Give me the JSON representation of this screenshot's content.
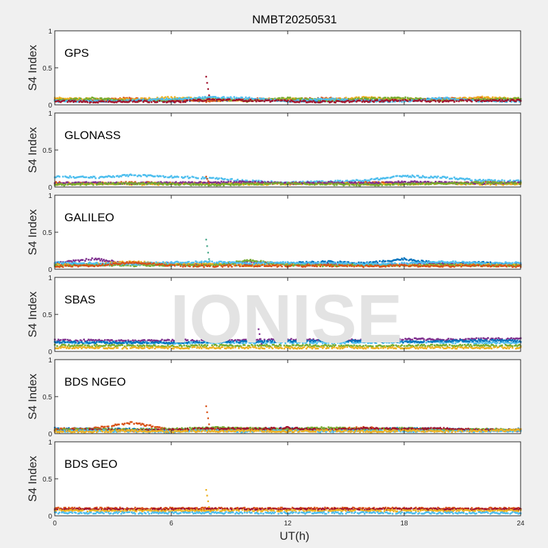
{
  "chart_data": {
    "type": "scatter",
    "title": "NMBT20250531",
    "xlabel": "UT(h)",
    "ylabel": "S4 Index",
    "xlim": [
      0,
      24
    ],
    "ylim": [
      0,
      1
    ],
    "xticks": [
      "0",
      "6",
      "12",
      "18",
      "24"
    ],
    "yticks": [
      "0",
      "0.5",
      "1"
    ],
    "watermark": "IONISE",
    "colors": [
      "#0072BD",
      "#D95319",
      "#EDB120",
      "#7E2F8E",
      "#77AC30",
      "#4DBEEE",
      "#A2142F"
    ],
    "x_knots": [
      0,
      2,
      4,
      6,
      8,
      10,
      12,
      14,
      16,
      18,
      20,
      22,
      24
    ],
    "panels": [
      {
        "label": "GPS",
        "series": [
          {
            "color": "#0072BD",
            "y": [
              0.07,
              0.06,
              0.07,
              0.05,
              0.06,
              0.07,
              0.06,
              0.05,
              0.07,
              0.06,
              0.08,
              0.06,
              0.07
            ]
          },
          {
            "color": "#D95319",
            "y": [
              0.08,
              0.07,
              0.09,
              0.06,
              0.05,
              0.08,
              0.07,
              0.09,
              0.06,
              0.07,
              0.08,
              0.09,
              0.06
            ]
          },
          {
            "color": "#EDB120",
            "y": [
              0.09,
              0.08,
              0.07,
              0.1,
              0.07,
              0.06,
              0.08,
              0.07,
              0.1,
              0.08,
              0.07,
              0.1,
              0.08
            ]
          },
          {
            "color": "#77AC30",
            "y": [
              0.06,
              0.09,
              0.05,
              0.07,
              0.09,
              0.05,
              0.09,
              0.06,
              0.08,
              0.09,
              0.06,
              0.07,
              0.09
            ]
          },
          {
            "color": "#4DBEEE",
            "y": [
              0.05,
              0.05,
              0.06,
              0.08,
              0.1,
              0.09,
              0.05,
              0.08,
              0.05,
              0.05,
              0.09,
              0.05,
              0.05
            ]
          },
          {
            "color": "#A2142F",
            "y": [
              0.05,
              0.04,
              0.05,
              0.04,
              0.07,
              0.06,
              0.05,
              0.04,
              0.05,
              0.06,
              0.05,
              0.06,
              0.06
            ]
          }
        ],
        "spikes": [
          {
            "x": 7.8,
            "y": 0.38,
            "color": "#A2142F"
          }
        ]
      },
      {
        "label": "GLONASS",
        "series": [
          {
            "color": "#4DBEEE",
            "y": [
              0.14,
              0.13,
              0.16,
              0.14,
              0.12,
              0.08,
              0.06,
              0.07,
              0.09,
              0.15,
              0.13,
              0.09,
              0.08
            ]
          },
          {
            "color": "#D95319",
            "y": [
              0.06,
              0.05,
              0.06,
              0.05,
              0.05,
              0.06,
              0.05,
              0.05,
              0.06,
              0.05,
              0.05,
              0.06,
              0.05
            ]
          },
          {
            "color": "#EDB120",
            "y": [
              0.04,
              0.05,
              0.04,
              0.04,
              0.05,
              0.04,
              0.04,
              0.05,
              0.04,
              0.04,
              0.05,
              0.04,
              0.04
            ]
          },
          {
            "color": "#7E2F8E",
            "y": [
              0.05,
              0.06,
              0.05,
              0.06,
              0.06,
              0.07,
              0.05,
              0.06,
              0.05,
              0.07,
              0.06,
              0.05,
              0.06
            ]
          },
          {
            "color": "#77AC30",
            "y": [
              0.03,
              0.04,
              0.05,
              0.04,
              0.03,
              0.04,
              0.05,
              0.04,
              0.03,
              0.04,
              0.05,
              0.06,
              0.05
            ]
          }
        ],
        "spikes": [
          {
            "x": 7.8,
            "y": 0.14,
            "color": "#D95319"
          }
        ]
      },
      {
        "label": "GALILEO",
        "series": [
          {
            "color": "#0072BD",
            "y": [
              0.07,
              0.06,
              0.08,
              0.06,
              0.07,
              0.06,
              0.08,
              0.1,
              0.08,
              0.14,
              0.07,
              0.09,
              0.06
            ]
          },
          {
            "color": "#7E2F8E",
            "y": [
              0.08,
              0.14,
              0.07,
              0.08,
              0.06,
              0.1,
              0.06,
              0.07,
              0.06,
              0.07,
              0.08,
              0.06,
              0.07
            ]
          },
          {
            "color": "#EDB120",
            "y": [
              0.06,
              0.07,
              0.1,
              0.07,
              0.08,
              0.05,
              0.07,
              0.06,
              0.05,
              0.06,
              0.05,
              0.07,
              0.06
            ]
          },
          {
            "color": "#77AC30",
            "y": [
              0.05,
              0.06,
              0.05,
              0.06,
              0.05,
              0.12,
              0.06,
              0.05,
              0.06,
              0.05,
              0.06,
              0.05,
              0.05
            ]
          },
          {
            "color": "#4DBEEE",
            "y": [
              0.09,
              0.08,
              0.07,
              0.09,
              0.1,
              0.08,
              0.09,
              0.08,
              0.07,
              0.08,
              0.1,
              0.08,
              0.09
            ]
          },
          {
            "color": "#D95319",
            "y": [
              0.04,
              0.05,
              0.09,
              0.05,
              0.04,
              0.05,
              0.04,
              0.05,
              0.04,
              0.05,
              0.04,
              0.05,
              0.04
            ]
          }
        ],
        "spikes": [
          {
            "x": 7.8,
            "y": 0.4,
            "color": "#4DAA8E"
          }
        ]
      },
      {
        "label": "SBAS",
        "series": [
          {
            "color": "#7E2F8E",
            "y": [
              0.15,
              0.15,
              0.14,
              0.15,
              0.15,
              0.15,
              0.16,
              0.15,
              0.16,
              0.17,
              0.16,
              0.17,
              0.17
            ]
          },
          {
            "color": "#4DBEEE",
            "y": [
              0.12,
              0.12,
              0.12,
              0.11,
              0.12,
              0.12,
              0.12,
              0.12,
              0.12,
              0.13,
              0.12,
              0.12,
              0.12
            ]
          },
          {
            "color": "#0072BD",
            "y": [
              0.13,
              0.12,
              0.12,
              0.12,
              0.13,
              0.13,
              0.14,
              0.15,
              0.14,
              0.13,
              0.14,
              0.15,
              0.14
            ]
          },
          {
            "color": "#77AC30",
            "y": [
              0.08,
              0.08,
              0.08,
              0.07,
              0.08,
              0.08,
              0.08,
              0.08,
              0.07,
              0.08,
              0.08,
              0.08,
              0.08
            ]
          },
          {
            "color": "#EDB120",
            "y": [
              0.05,
              0.05,
              0.05,
              0.05,
              0.05,
              0.05,
              0.05,
              0.05,
              0.05,
              0.05,
              0.05,
              0.05,
              0.05
            ]
          }
        ],
        "spikes": [
          {
            "x": 10.5,
            "y": 0.3,
            "color": "#7E2F8E"
          }
        ]
      },
      {
        "label": "BDS NGEO",
        "series": [
          {
            "color": "#0072BD",
            "y": [
              0.07,
              0.06,
              0.06,
              0.05,
              0.06,
              0.06,
              0.07,
              0.06,
              0.06,
              0.07,
              0.06,
              0.05,
              0.06
            ]
          },
          {
            "color": "#D95319",
            "y": [
              0.06,
              0.07,
              0.15,
              0.05,
              0.06,
              0.07,
              0.05,
              0.06,
              0.08,
              0.05,
              0.06,
              0.04,
              0.05
            ]
          },
          {
            "color": "#77AC30",
            "y": [
              0.05,
              0.06,
              0.05,
              0.06,
              0.08,
              0.07,
              0.06,
              0.08,
              0.06,
              0.07,
              0.05,
              0.06,
              0.05
            ]
          },
          {
            "color": "#A2142F",
            "y": [
              0.04,
              0.05,
              0.04,
              0.05,
              0.07,
              0.06,
              0.08,
              0.05,
              0.07,
              0.06,
              0.07,
              0.05,
              0.04
            ]
          },
          {
            "color": "#4DBEEE",
            "y": [
              0.03,
              0.04,
              0.03,
              0.03,
              0.04,
              0.03,
              0.04,
              0.03,
              0.04,
              0.03,
              0.04,
              0.03,
              0.04
            ]
          },
          {
            "color": "#EDB120",
            "y": [
              0.03,
              0.03,
              0.04,
              0.03,
              0.03,
              0.04,
              0.03,
              0.04,
              0.03,
              0.04,
              0.03,
              0.04,
              0.05
            ]
          }
        ],
        "spikes": [
          {
            "x": 7.8,
            "y": 0.37,
            "color": "#D95319"
          }
        ]
      },
      {
        "label": "BDS GEO",
        "series": [
          {
            "color": "#D95319",
            "y": [
              0.1,
              0.1,
              0.1,
              0.1,
              0.1,
              0.1,
              0.1,
              0.1,
              0.1,
              0.1,
              0.1,
              0.1,
              0.1
            ]
          },
          {
            "color": "#A2142F",
            "y": [
              0.09,
              0.09,
              0.09,
              0.09,
              0.09,
              0.09,
              0.09,
              0.09,
              0.09,
              0.09,
              0.09,
              0.09,
              0.09
            ]
          },
          {
            "color": "#EDB120",
            "y": [
              0.07,
              0.07,
              0.07,
              0.07,
              0.07,
              0.07,
              0.07,
              0.07,
              0.07,
              0.07,
              0.07,
              0.07,
              0.07
            ]
          },
          {
            "color": "#4DBEEE",
            "y": [
              0.04,
              0.04,
              0.04,
              0.04,
              0.04,
              0.04,
              0.04,
              0.04,
              0.04,
              0.04,
              0.04,
              0.04,
              0.04
            ]
          }
        ],
        "spikes": [
          {
            "x": 7.8,
            "y": 0.35,
            "color": "#EDB120"
          }
        ]
      }
    ]
  }
}
